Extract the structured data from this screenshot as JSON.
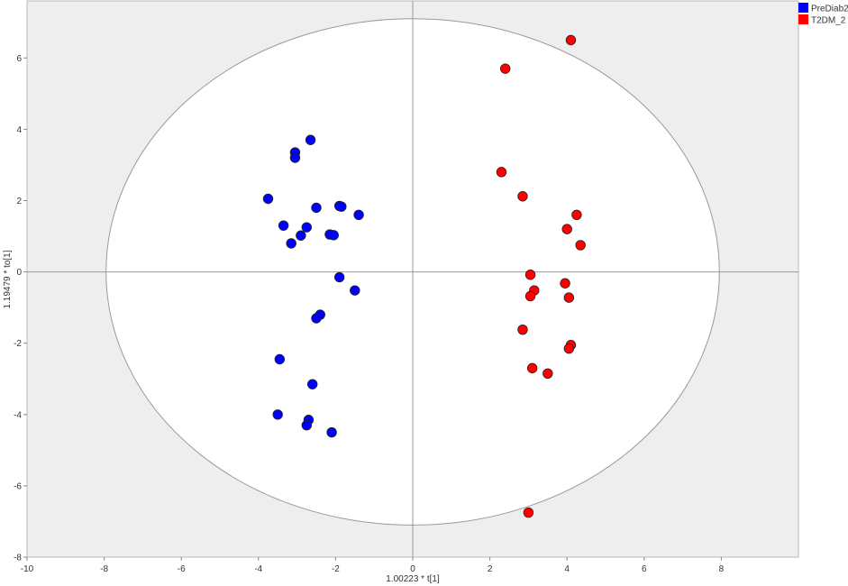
{
  "chart_data": {
    "type": "scatter",
    "xlabel": "1.00223 * t[1]",
    "ylabel": "1.19479 * to[1]",
    "xlim": [
      -10,
      10
    ],
    "ylim": [
      -8,
      7.6
    ],
    "xticks": [
      -10,
      -8,
      -6,
      -4,
      -2,
      0,
      2,
      4,
      6,
      8
    ],
    "yticks": [
      -8,
      -6,
      -4,
      -2,
      0,
      2,
      4,
      6
    ],
    "grid": false,
    "legend_position": "top-right",
    "ellipse": {
      "center": [
        0,
        0
      ],
      "rx": 7.95,
      "ry": 7.1
    },
    "series": [
      {
        "name": "PreDiab2",
        "color": "#0000ff",
        "points": [
          [
            -2.65,
            3.7
          ],
          [
            -3.05,
            3.35
          ],
          [
            -3.05,
            3.2
          ],
          [
            -3.75,
            2.05
          ],
          [
            -1.9,
            1.85
          ],
          [
            -1.85,
            1.83
          ],
          [
            -2.5,
            1.8
          ],
          [
            -1.4,
            1.6
          ],
          [
            -3.35,
            1.3
          ],
          [
            -2.75,
            1.25
          ],
          [
            -2.15,
            1.05
          ],
          [
            -2.05,
            1.03
          ],
          [
            -2.9,
            1.02
          ],
          [
            -3.15,
            0.8
          ],
          [
            -1.9,
            -0.15
          ],
          [
            -1.5,
            -0.52
          ],
          [
            -2.4,
            -1.2
          ],
          [
            -2.5,
            -1.3
          ],
          [
            -3.45,
            -2.45
          ],
          [
            -2.6,
            -3.15
          ],
          [
            -3.5,
            -4.0
          ],
          [
            -2.7,
            -4.15
          ],
          [
            -2.75,
            -4.3
          ],
          [
            -2.1,
            -4.5
          ]
        ]
      },
      {
        "name": "T2DM_2",
        "color": "#ff0000",
        "points": [
          [
            4.1,
            6.5
          ],
          [
            2.4,
            5.7
          ],
          [
            2.3,
            2.8
          ],
          [
            2.85,
            2.12
          ],
          [
            4.25,
            1.6
          ],
          [
            4.0,
            1.2
          ],
          [
            4.35,
            0.75
          ],
          [
            3.05,
            -0.08
          ],
          [
            3.95,
            -0.32
          ],
          [
            3.15,
            -0.52
          ],
          [
            3.05,
            -0.68
          ],
          [
            4.05,
            -0.72
          ],
          [
            2.85,
            -1.62
          ],
          [
            4.1,
            -2.05
          ],
          [
            4.05,
            -2.15
          ],
          [
            3.1,
            -2.7
          ],
          [
            3.5,
            -2.85
          ],
          [
            3.0,
            -6.75
          ]
        ]
      }
    ]
  }
}
